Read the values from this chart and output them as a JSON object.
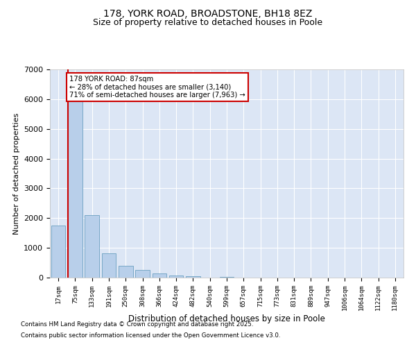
{
  "title_line1": "178, YORK ROAD, BROADSTONE, BH18 8EZ",
  "title_line2": "Size of property relative to detached houses in Poole",
  "xlabel": "Distribution of detached houses by size in Poole",
  "ylabel": "Number of detached properties",
  "fig_background": "#ffffff",
  "plot_background": "#dce6f5",
  "bar_color": "#b8cfea",
  "bar_edge_color": "#6a9fc0",
  "grid_color": "#ffffff",
  "categories": [
    "17sqm",
    "75sqm",
    "133sqm",
    "191sqm",
    "250sqm",
    "308sqm",
    "366sqm",
    "424sqm",
    "482sqm",
    "540sqm",
    "599sqm",
    "657sqm",
    "715sqm",
    "773sqm",
    "831sqm",
    "889sqm",
    "947sqm",
    "1006sqm",
    "1064sqm",
    "1122sqm",
    "1180sqm"
  ],
  "values": [
    1750,
    6050,
    2100,
    820,
    390,
    250,
    130,
    75,
    50,
    10,
    25,
    0,
    0,
    0,
    0,
    0,
    0,
    0,
    0,
    0,
    0
  ],
  "ylim": [
    0,
    7000
  ],
  "yticks": [
    0,
    1000,
    2000,
    3000,
    4000,
    5000,
    6000,
    7000
  ],
  "property_line_color": "#cc0000",
  "annotation_text": "178 YORK ROAD: 87sqm\n← 28% of detached houses are smaller (3,140)\n71% of semi-detached houses are larger (7,963) →",
  "annotation_box_edgecolor": "#cc0000",
  "footnote1": "Contains HM Land Registry data © Crown copyright and database right 2025.",
  "footnote2": "Contains public sector information licensed under the Open Government Licence v3.0."
}
